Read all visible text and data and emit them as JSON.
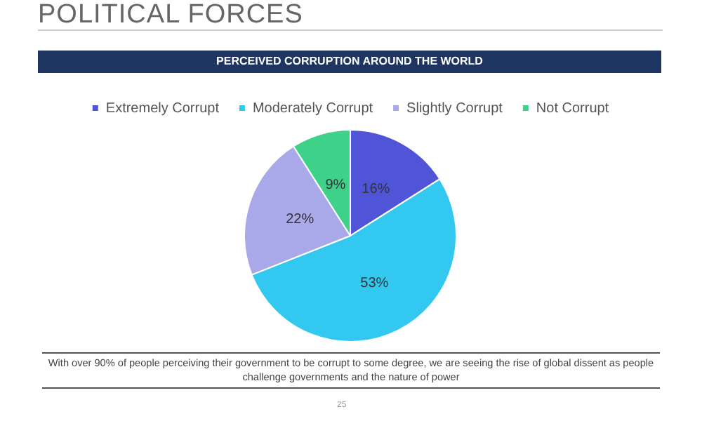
{
  "chart_data": {
    "type": "pie",
    "title": "POLITICAL FORCES",
    "subtitle": "PERCEIVED CORRUPTION AROUND THE WORLD",
    "categories": [
      "Extremely Corrupt",
      "Moderately Corrupt",
      "Slightly Corrupt",
      "Not Corrupt"
    ],
    "values": [
      16,
      53,
      22,
      9
    ],
    "colors": [
      "#5055d8",
      "#33c8f0",
      "#a9a9ea",
      "#3ed18a"
    ],
    "value_labels": [
      "16%",
      "53%",
      "22%",
      "9%"
    ],
    "legend": "top",
    "annotations": [
      "With over 90% of people perceiving their government to be corrupt to some degree, we are seeing the rise of global dissent as people challenge governments and the nature of power",
      "25"
    ]
  }
}
